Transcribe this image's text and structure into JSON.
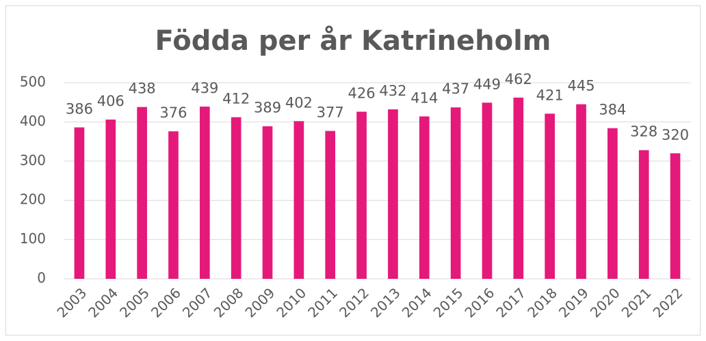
{
  "chart_data": {
    "type": "bar",
    "title": "Födda per år Katrineholm",
    "categories": [
      "2003",
      "2004",
      "2005",
      "2006",
      "2007",
      "2008",
      "2009",
      "2010",
      "2011",
      "2012",
      "2013",
      "2014",
      "2015",
      "2016",
      "2017",
      "2018",
      "2019",
      "2020",
      "2021",
      "2022"
    ],
    "values": [
      386,
      406,
      438,
      376,
      439,
      412,
      389,
      402,
      377,
      426,
      432,
      414,
      437,
      449,
      462,
      421,
      445,
      384,
      328,
      320
    ],
    "color": "#e5197a",
    "ylim": [
      0,
      500
    ],
    "yticks": [
      0,
      100,
      200,
      300,
      400,
      500
    ],
    "grid": true,
    "data_labels": true
  }
}
